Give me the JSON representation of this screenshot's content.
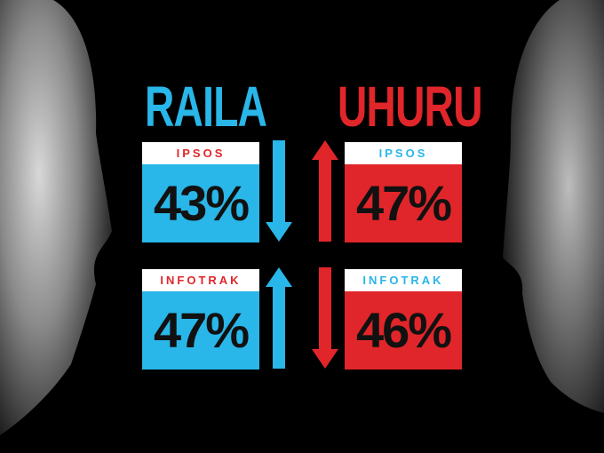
{
  "left": {
    "name": "RAILA",
    "polls": [
      {
        "pollster": "IPSOS",
        "result": "43%"
      },
      {
        "pollster": "INFOTRAK",
        "result": "47%"
      }
    ]
  },
  "right": {
    "name": "UHURU",
    "polls": [
      {
        "pollster": "IPSOS",
        "result": "47%"
      },
      {
        "pollster": "INFOTRAK",
        "result": "46%"
      }
    ]
  }
}
